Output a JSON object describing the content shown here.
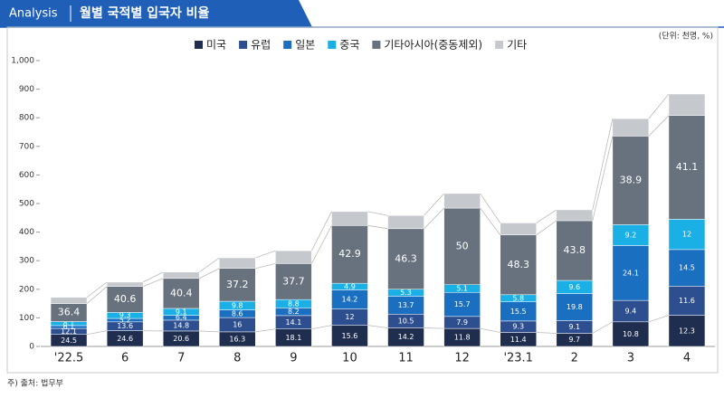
{
  "header": {
    "tag": "Analysis",
    "title": "월별 국적별 입국자 비율"
  },
  "chart_data": {
    "type": "stacked-bar",
    "unit": "(단위: 천명, %)",
    "source": "주) 출처: 법무부",
    "categories": [
      "'22.5",
      "6",
      "7",
      "8",
      "9",
      "10",
      "11",
      "12",
      "'23.1",
      "2",
      "3",
      "4"
    ],
    "series": [
      {
        "name": "미국",
        "color": "#1f2d4e",
        "values": [
          42,
          55,
          54,
          51,
          61,
          74,
          65,
          63,
          49,
          46,
          86,
          109
        ],
        "percents": [
          24.5,
          24.6,
          20.6,
          16.3,
          18.1,
          15.6,
          14.2,
          11.8,
          11.4,
          9.7,
          10.8,
          12.3
        ]
      },
      {
        "name": "유럽",
        "color": "#2e4f8f",
        "values": [
          21,
          31,
          38,
          50,
          47,
          57,
          48,
          42,
          40,
          44,
          75,
          102
        ],
        "percents": [
          12.1,
          13.6,
          14.8,
          16.0,
          14.1,
          12.0,
          10.5,
          7.9,
          9.3,
          9.1,
          9.4,
          11.6
        ]
      },
      {
        "name": "일본",
        "color": "#1a6fc0",
        "values": [
          10,
          12,
          17,
          27,
          27,
          67,
          63,
          84,
          67,
          95,
          192,
          128
        ],
        "percents": [
          6.1,
          5.2,
          6.4,
          8.6,
          8.2,
          14.2,
          13.7,
          15.7,
          15.5,
          19.8,
          24.1,
          14.5
        ]
      },
      {
        "name": "중국",
        "color": "#1ab0e6",
        "values": [
          14,
          21,
          24,
          30,
          29,
          23,
          24,
          27,
          25,
          46,
          73,
          106
        ],
        "percents": [
          8.1,
          9.3,
          9.1,
          9.8,
          8.8,
          4.9,
          5.3,
          5.1,
          5.8,
          9.6,
          9.2,
          12.0
        ]
      },
      {
        "name": "기타아시아(중동제외)",
        "color": "#68727e",
        "values": [
          63,
          91,
          105,
          115,
          126,
          202,
          212,
          268,
          209,
          209,
          310,
          363
        ],
        "percents": [
          36.4,
          40.6,
          40.4,
          37.2,
          37.7,
          42.9,
          46.3,
          50.0,
          48.3,
          43.8,
          38.9,
          41.1
        ]
      },
      {
        "name": "기타",
        "color": "#c5c8cc",
        "values": [
          22,
          15,
          22,
          37,
          45,
          49,
          46,
          51,
          42,
          38,
          61,
          75
        ]
      }
    ],
    "ylim": [
      0,
      1000
    ],
    "yticks": [
      0,
      100,
      200,
      300,
      400,
      500,
      600,
      700,
      800,
      900,
      {
        "value": 1000,
        "label": "1,000"
      }
    ]
  }
}
